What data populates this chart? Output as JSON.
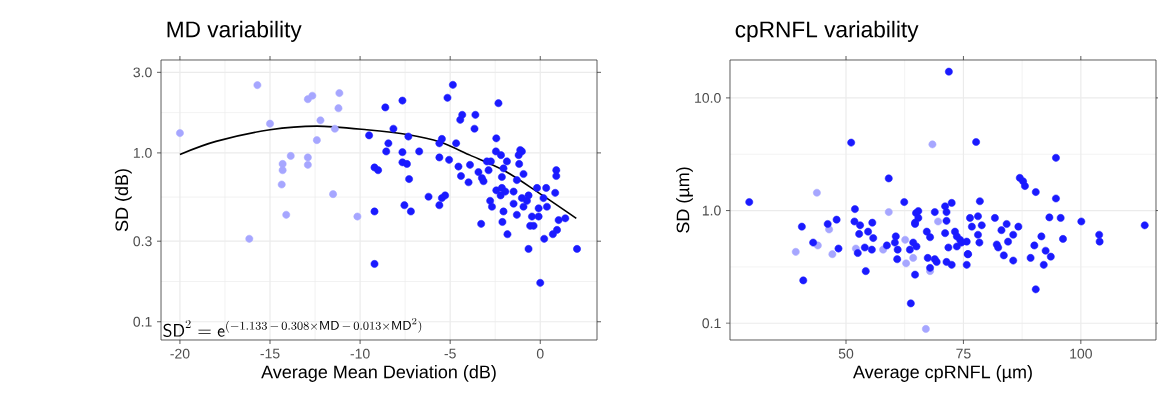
{
  "chart_data": [
    {
      "type": "scatter",
      "title": "MD variability",
      "xlabel": "Average Mean Deviation (dB)",
      "ylabel": "SD (dB)",
      "log": "y",
      "grid": true,
      "marker": "circle",
      "xlim": [
        -21.05,
        3.15
      ],
      "ylim": [
        0.078,
        3.55
      ],
      "xticks": [
        -20,
        -15,
        -10,
        -5,
        0
      ],
      "yticks": [
        {
          "value": 0.1,
          "label": "0.1"
        },
        {
          "value": 0.3,
          "label": "0.3"
        },
        {
          "value": 1,
          "label": "1.0"
        },
        {
          "value": 3,
          "label": "3.0"
        }
      ],
      "annotations": [
        "\\mathsf{SD}^{2} = \\mathsf{e}^{(-1.133\\,-\\,0.308\\times\\mathsf{MD}\\,-\\,0.013\\times\\mathsf{MD}^{2})}"
      ],
      "series": [
        {
          "color": "#a6a6ff",
          "x": [
            -20,
            -15.7,
            -12.9,
            -12.65,
            -11.15,
            -11.2,
            -15.0,
            -12.2,
            -11.4,
            -12.4,
            -13.85,
            -14.3,
            -14.3,
            -12.9,
            -12.9,
            -14.35,
            -11.5,
            -14.1,
            -10.15,
            -16.15
          ],
          "values": [
            1.31,
            2.52,
            2.08,
            2.18,
            2.26,
            1.84,
            1.49,
            1.56,
            1.39,
            1.19,
            0.96,
            0.86,
            0.79,
            0.94,
            0.85,
            0.65,
            0.57,
            0.43,
            0.42,
            0.31
          ]
        },
        {
          "color": "#1a1aff",
          "x": [
            -9.5,
            -9.2,
            -9.0,
            -9.2,
            -9.2,
            -8.6,
            -7.65,
            -8.15,
            -8.43,
            -8.55,
            -7.65,
            -7.32,
            -7.65,
            -7.4,
            -7.28,
            -6.72,
            -7.54,
            -7.18,
            -6.2,
            -5.6,
            -5.46,
            -5.28,
            -5.15,
            -4.85,
            -5.6,
            -5.46,
            -5.6,
            -5.06,
            -4.67,
            -4.44,
            -4.33,
            -3.6,
            -3.65,
            -4.54,
            -4.4,
            -3.98,
            -3.9,
            -3.43,
            -3.24,
            -3.15,
            -2.87,
            -2.74,
            -2.44,
            -2.32,
            -2.46,
            -2.18,
            -1.85,
            -2.04,
            -2.13,
            -1.11,
            -1.02,
            -1.2,
            -1.17,
            -0.93,
            -1.3,
            -2.44,
            -2.13,
            -1.94,
            -2.2,
            -2.78,
            -2.68,
            -2.04,
            -2.1,
            -3.28,
            -1.82,
            -1.48,
            -1.02,
            -1.48,
            -0.93,
            -1.3,
            -0.74,
            -0.65,
            -0.18,
            0.18,
            -0.09,
            0.37,
            -0.46,
            -0.56,
            -0.37,
            -0.09,
            0.33,
            0.83,
            0.89,
            0.89,
            -0.65,
            0.22,
            0.7,
            0.93,
            1.02,
            1.39,
            2.04,
            0.0,
            -2.96
          ],
          "values": [
            1.27,
            0.82,
            0.79,
            0.45,
            0.22,
            1.86,
            2.04,
            1.39,
            1.14,
            1.02,
            1.01,
            1.25,
            0.88,
            0.86,
            0.7,
            1.02,
            0.49,
            0.45,
            0.55,
            0.49,
            0.54,
            0.56,
            2.12,
            2.53,
            1.14,
            1.21,
            0.94,
            0.91,
            1.14,
            1.57,
            1.68,
            1.68,
            1.39,
            0.83,
            0.73,
            0.67,
            0.85,
            0.77,
            0.71,
            0.68,
            0.79,
            0.89,
            1.22,
            1.97,
            1.02,
            0.97,
            0.89,
            0.81,
            0.72,
            1.04,
            1.02,
            0.97,
            0.86,
            0.75,
            0.69,
            0.6,
            0.62,
            0.59,
            0.56,
            0.52,
            0.48,
            0.45,
            0.39,
            0.38,
            0.33,
            0.59,
            0.54,
            0.5,
            0.48,
            0.43,
            0.52,
            0.56,
            0.62,
            0.54,
            0.47,
            0.48,
            0.42,
            0.37,
            0.37,
            0.42,
            0.62,
            0.58,
            0.79,
            0.73,
            0.27,
            0.31,
            0.33,
            0.35,
            0.4,
            0.41,
            0.27,
            0.17,
            0.89
          ]
        },
        {
          "type": "line",
          "marker": "none",
          "color": "#000000",
          "x": [
            -20,
            -18,
            -15,
            -12.4,
            -9.63,
            -7.3,
            -5.56,
            -3.9,
            -2.04,
            -0.18,
            2.0
          ],
          "values": [
            0.98,
            1.17,
            1.37,
            1.44,
            1.37,
            1.28,
            1.16,
            0.97,
            0.79,
            0.59,
            0.41
          ]
        }
      ]
    },
    {
      "type": "scatter",
      "title": "cpRNFL variability",
      "xlabel": "Average cpRNFL (µm)",
      "ylabel": "SD (µm)",
      "log": "y",
      "grid": true,
      "marker": "circle",
      "xlim": [
        25.3,
        116.0
      ],
      "ylim": [
        0.071,
        21.7
      ],
      "xticks": [
        50,
        75,
        100
      ],
      "yticks": [
        {
          "value": 0.1,
          "label": "0.1"
        },
        {
          "value": 1,
          "label": "1.0"
        },
        {
          "value": 10,
          "label": "10.0"
        }
      ],
      "series": [
        {
          "color": "#a6a6ff",
          "x": [
            39.3,
            43.8,
            44.0,
            47.1,
            46.4,
            59.1,
            52.1,
            57.9,
            62.6,
            62.8,
            68.4,
            67.0,
            69.6,
            64.3,
            67.9
          ],
          "values": [
            0.43,
            1.44,
            0.49,
            0.41,
            0.68,
            0.97,
            0.46,
            0.45,
            0.55,
            0.34,
            3.87,
            0.089,
            0.8,
            0.38,
            0.29
          ]
        },
        {
          "color": "#1a1aff",
          "x": [
            29.4,
            40.6,
            43.0,
            40.9,
            46.1,
            48.0,
            48.4,
            51.1,
            51.9,
            51.8,
            53.0,
            52.8,
            52.5,
            54.0,
            54.2,
            54.7,
            55.6,
            55.8,
            55.5,
            59.1,
            58.7,
            60.6,
            60.4,
            61.0,
            60.9,
            62.4,
            64.7,
            63.8,
            64.9,
            64.7,
            64.3,
            63.6,
            71.9,
            77.7,
            94.7,
            87.0,
            87.7,
            88.1,
            90.4,
            94.7,
            78.5,
            72.5,
            71.1,
            68.9,
            65.4,
            65.4,
            64.7,
            71.4,
            71.4,
            76.4,
            78.1,
            76.8,
            78.9,
            78.1,
            78.4,
            75.7,
            76.0,
            75.7,
            81.7,
            84.2,
            83.1,
            85.6,
            86.7,
            84.5,
            82.1,
            82.4,
            83.6,
            85.6,
            93.3,
            95.7,
            100.1,
            91.6,
            90.1,
            89.3,
            92.5,
            93.6,
            92.1,
            96.2,
            103.9,
            104.0,
            113.6,
            90.4,
            67.2,
            67.9,
            68.9,
            71.1,
            71.8,
            73.2,
            73.6,
            72.5,
            71.4,
            73.6,
            74.3,
            74.6,
            75.9,
            67.4,
            69.3,
            67.9,
            65.0
          ],
          "values": [
            1.19,
            0.72,
            0.52,
            0.24,
            0.76,
            0.83,
            0.46,
            4.01,
            1.03,
            0.8,
            0.74,
            0.62,
            0.42,
            0.47,
            0.29,
            0.65,
            0.78,
            0.57,
            0.45,
            1.93,
            0.49,
            0.59,
            0.52,
            0.45,
            0.37,
            1.19,
            0.27,
            0.15,
            0.95,
            0.78,
            0.52,
            0.45,
            17.1,
            4.06,
            2.94,
            1.95,
            1.82,
            1.65,
            1.46,
            1.28,
            1.21,
            1.17,
            1.09,
            0.97,
            0.99,
            0.86,
            0.76,
            0.97,
            0.81,
            0.86,
            0.89,
            0.72,
            0.74,
            0.61,
            0.52,
            0.53,
            0.41,
            0.33,
            0.86,
            0.76,
            0.67,
            0.61,
            0.72,
            0.53,
            0.5,
            0.47,
            0.4,
            0.36,
            0.87,
            0.86,
            0.8,
            0.59,
            0.49,
            0.38,
            0.44,
            0.39,
            0.33,
            0.56,
            0.61,
            0.53,
            0.74,
            0.2,
            0.65,
            0.58,
            0.37,
            0.63,
            0.47,
            0.65,
            0.48,
            0.33,
            0.35,
            0.59,
            0.55,
            0.52,
            0.41,
            0.38,
            0.35,
            0.31,
            0.48
          ]
        }
      ]
    }
  ]
}
